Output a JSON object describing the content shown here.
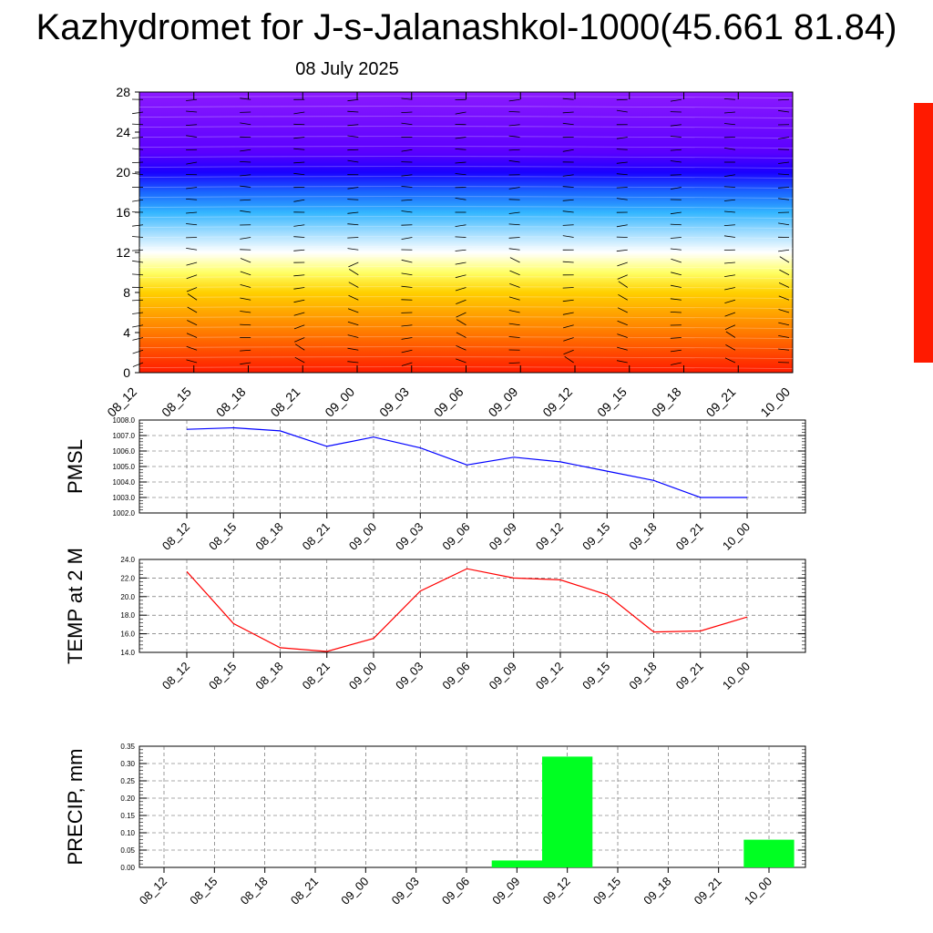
{
  "title": "Kazhydromet for J-s-Jalanashkol-1000(45.661 81.84)",
  "subtitle": "08 July 2025",
  "time_labels": [
    "08_12",
    "08_15",
    "08_18",
    "08_21",
    "09_00",
    "09_03",
    "09_06",
    "09_09",
    "09_12",
    "09_15",
    "09_18",
    "09_21",
    "10_00"
  ],
  "chart_data": [
    {
      "type": "heatmap",
      "x": [
        "08_12",
        "08_15",
        "08_18",
        "08_21",
        "09_00",
        "09_03",
        "09_06",
        "09_09",
        "09_12",
        "09_15",
        "09_18",
        "09_21",
        "10_00"
      ],
      "ylim": [
        0,
        28
      ],
      "yticks": [
        0,
        4,
        8,
        12,
        16,
        20,
        24,
        28
      ],
      "colorscale": [
        "#ff1a00",
        "#ff4a00",
        "#ff7a00",
        "#ffa500",
        "#ffd000",
        "#ffff66",
        "#ffffff",
        "#9fdcff",
        "#33b5ff",
        "#1a66ff",
        "#1a00ff",
        "#5a00ff",
        "#8c1aff"
      ],
      "overlay": "wind barbs"
    },
    {
      "type": "line",
      "ylabel": "PMSL",
      "ylim": [
        1002.0,
        1008.0
      ],
      "yticks": [
        "1002.0",
        "1003.0",
        "1004.0",
        "1005.0",
        "1006.0",
        "1007.0",
        "1008.0"
      ],
      "x": [
        "08_12",
        "08_15",
        "08_18",
        "08_21",
        "09_00",
        "09_03",
        "09_06",
        "09_09",
        "09_12",
        "09_15",
        "09_18",
        "09_21",
        "10_00"
      ],
      "series": [
        {
          "values": [
            1007.4,
            1007.5,
            1007.3,
            1006.3,
            1006.9,
            1006.2,
            1005.1,
            1005.6,
            1005.3,
            1004.7,
            1004.1,
            1003.0,
            1003.0
          ],
          "color": "#0000ff"
        }
      ],
      "grid": true
    },
    {
      "type": "line",
      "ylabel": "TEMP at 2 M",
      "ylim": [
        14.0,
        24.0
      ],
      "yticks": [
        "14.0",
        "16.0",
        "18.0",
        "20.0",
        "22.0",
        "24.0"
      ],
      "x": [
        "08_12",
        "08_15",
        "08_18",
        "08_21",
        "09_00",
        "09_03",
        "09_06",
        "09_09",
        "09_12",
        "09_15",
        "09_18",
        "09_21",
        "10_00"
      ],
      "series": [
        {
          "values": [
            22.7,
            17.1,
            14.5,
            14.1,
            15.5,
            20.6,
            23.0,
            22.0,
            21.8,
            20.2,
            16.2,
            16.3,
            17.8
          ],
          "color": "#ff0000"
        }
      ],
      "grid": true
    },
    {
      "type": "bar",
      "ylabel": "PRECIP, mm",
      "ylim": [
        0.0,
        0.35
      ],
      "yticks": [
        "0.00",
        "0.05",
        "0.10",
        "0.15",
        "0.20",
        "0.25",
        "0.30",
        "0.35"
      ],
      "categories": [
        "08_12",
        "08_15",
        "08_18",
        "08_21",
        "09_00",
        "09_03",
        "09_06",
        "09_09",
        "09_12",
        "09_15",
        "09_18",
        "09_21",
        "10_00"
      ],
      "values": [
        0,
        0,
        0,
        0,
        0,
        0,
        0,
        0.02,
        0.32,
        0,
        0,
        0,
        0.08
      ],
      "color": "#00ff22",
      "grid": true
    }
  ]
}
